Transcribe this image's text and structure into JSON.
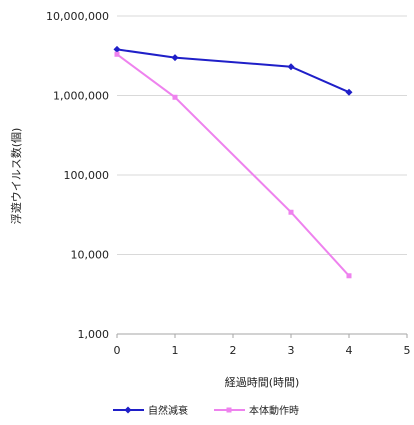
{
  "colors": {
    "series_1": "#1f1fc8",
    "series_2": "#ee82ee",
    "gridline": "#d9d9d9",
    "axis": "#a6a6a6",
    "background": "#ffffff"
  },
  "chart_data": {
    "type": "line",
    "title": "",
    "xlabel": "経過時間(時間)",
    "ylabel": "浮遊ウイルス数(個)",
    "x_ticks": [
      0,
      1,
      2,
      3,
      4,
      5
    ],
    "x_tick_labels": [
      "0",
      "1",
      "2",
      "3",
      "4",
      "5"
    ],
    "xlim": [
      0,
      5
    ],
    "y_scale": "log",
    "ylim": [
      1000,
      10000000
    ],
    "y_ticks": [
      1000,
      10000,
      100000,
      1000000,
      10000000
    ],
    "y_tick_labels": [
      "1,000",
      "10,000",
      "100,000",
      "1,000,000",
      "10,000,000"
    ],
    "grid": true,
    "legend_position": "bottom",
    "series": [
      {
        "name": "自然減衰",
        "color": "#1f1fc8",
        "marker": "diamond",
        "x": [
          0,
          1,
          3,
          4
        ],
        "y": [
          3800000,
          3000000,
          2300000,
          1100000
        ]
      },
      {
        "name": "本体動作時",
        "color": "#ee82ee",
        "marker": "square",
        "x": [
          0,
          1,
          3,
          4
        ],
        "y": [
          3300000,
          950000,
          34000,
          5400
        ]
      }
    ]
  }
}
